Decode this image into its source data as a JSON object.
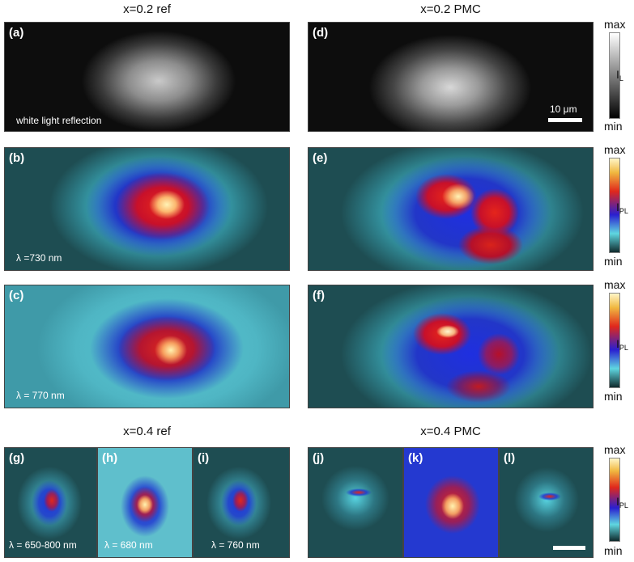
{
  "titles": {
    "x02_ref": "x=0.2 ref",
    "x02_pmc": "x=0.2 PMC",
    "x04_ref": "x=0.4 ref",
    "x04_pmc": "x=0.4 PMC"
  },
  "panels": {
    "a": {
      "label": "(a)",
      "caption": "white light reflection"
    },
    "b": {
      "label": "(b)",
      "caption": "λ =730 nm"
    },
    "c": {
      "label": "(c)",
      "caption": "λ = 770 nm"
    },
    "d": {
      "label": "(d)",
      "scale": "10 μm"
    },
    "e": {
      "label": "(e)"
    },
    "f": {
      "label": "(f)"
    },
    "g": {
      "label": "(g)",
      "caption": "λ = 650-800 nm"
    },
    "h": {
      "label": "(h)",
      "caption": "λ = 680 nm"
    },
    "i": {
      "label": "(i)",
      "caption": "λ = 760 nm"
    },
    "j": {
      "label": "(j)"
    },
    "k": {
      "label": "(k)"
    },
    "l": {
      "label": "(l)"
    }
  },
  "colorbars": {
    "max": "max",
    "min": "min",
    "il_main": "I",
    "il_sub": "L",
    "ipl_main": "I",
    "ipl_sub": "PL"
  },
  "colors": {
    "cyan_bg": "#1e4d52",
    "blue": "#1a2fd6",
    "red": "#e01a14",
    "hot": "#fff2b0"
  }
}
